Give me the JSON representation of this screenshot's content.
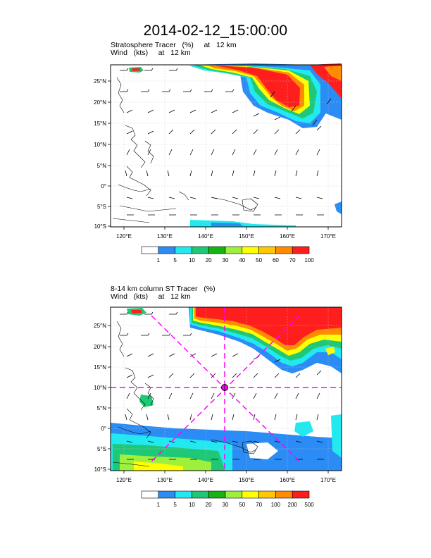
{
  "title": "2014-02-12_15:00:00",
  "panels": [
    {
      "id": "top",
      "subtitle_line1": "Stratosphere Tracer   (%)     at   12 km",
      "subtitle_line2": "Wind   (kts)     at   12 km",
      "lat_labels": [
        "25°N",
        "20°N",
        "15°N",
        "10°N",
        "5°N",
        "0°",
        "5°S",
        "10°S"
      ],
      "lon_labels": [
        "120°E",
        "130°E",
        "140°E",
        "150°E",
        "160°E",
        "170°E"
      ],
      "colorbar_labels": [
        "1",
        "5",
        "10",
        "20",
        "30",
        "40",
        "50",
        "60",
        "70",
        "100"
      ],
      "colorbar_colors": [
        "#ffffff",
        "#2b8cf5",
        "#22e8f0",
        "#1fc877",
        "#14b414",
        "#9ef03c",
        "#ffff00",
        "#ffc800",
        "#ff8c00",
        "#ff1e1e"
      ],
      "show_cross_section": false
    },
    {
      "id": "bottom",
      "subtitle_line1": "8-14 km column ST Tracer   (%)",
      "subtitle_line2": "Wind   (kts)     at   12 km",
      "lat_labels": [
        "25°N",
        "20°N",
        "15°N",
        "10°N",
        "5°N",
        "0°",
        "5°S",
        "10°S"
      ],
      "lon_labels": [
        "120°E",
        "130°E",
        "140°E",
        "150°E",
        "160°E",
        "170°E"
      ],
      "colorbar_labels": [
        "1",
        "5",
        "10",
        "20",
        "30",
        "50",
        "70",
        "100",
        "200",
        "500"
      ],
      "colorbar_colors": [
        "#ffffff",
        "#2b8cf5",
        "#22e8f0",
        "#1fc877",
        "#14b414",
        "#9ef03c",
        "#ffff00",
        "#ffc800",
        "#ff8c00",
        "#ff1e1e"
      ],
      "show_cross_section": true,
      "cross_section_color": "#ff00ff"
    }
  ]
}
